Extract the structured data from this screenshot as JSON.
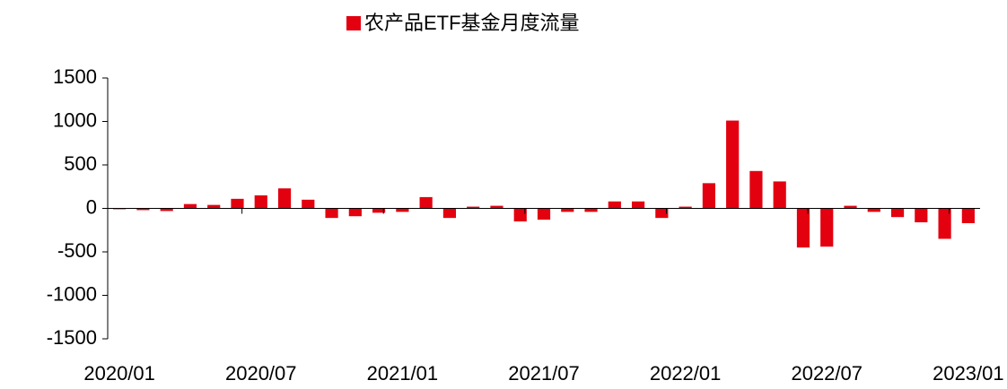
{
  "chart_data": {
    "type": "bar",
    "series": [
      {
        "name": "农产品ETF基金月度流量",
        "color": "#e3000f",
        "values": [
          -10,
          -20,
          -30,
          50,
          40,
          110,
          150,
          230,
          100,
          -110,
          -90,
          -50,
          -40,
          130,
          -110,
          20,
          30,
          -150,
          -130,
          -40,
          -40,
          80,
          80,
          -110,
          20,
          290,
          1010,
          430,
          310,
          -450,
          -440,
          30,
          -40,
          -100,
          -160,
          -350,
          -170
        ]
      }
    ],
    "categories": [
      "2020/01",
      null,
      null,
      null,
      null,
      null,
      "2020/07",
      null,
      null,
      null,
      null,
      null,
      "2021/01",
      null,
      null,
      null,
      null,
      null,
      "2021/07",
      null,
      null,
      null,
      null,
      null,
      "2022/01",
      null,
      null,
      null,
      null,
      null,
      "2022/07",
      null,
      null,
      null,
      null,
      null,
      "2023/01"
    ],
    "ylim": [
      -1500,
      1500
    ],
    "yticks": [
      -1500,
      -1000,
      -500,
      0,
      500,
      1000,
      1500
    ],
    "legend": "top"
  }
}
